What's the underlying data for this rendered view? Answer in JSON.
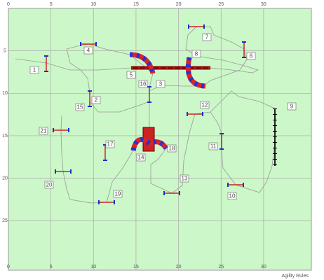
{
  "grid": {
    "xticks": [
      0,
      5,
      10,
      15,
      20,
      25,
      30
    ],
    "yticks": [
      5,
      10,
      15,
      20,
      25
    ]
  },
  "obstacles": [
    {
      "label": "1"
    },
    {
      "label": "2"
    },
    {
      "label": "3"
    },
    {
      "label": "4"
    },
    {
      "label": "5"
    },
    {
      "label": "6"
    },
    {
      "label": "7"
    },
    {
      "label": "8"
    },
    {
      "label": "9"
    },
    {
      "label": "10"
    },
    {
      "label": "11"
    },
    {
      "label": "12"
    },
    {
      "label": "13"
    },
    {
      "label": "14"
    },
    {
      "label": "15"
    },
    {
      "label": "16"
    },
    {
      "label": "17"
    },
    {
      "label": "18"
    },
    {
      "label": "19"
    },
    {
      "label": "20"
    },
    {
      "label": "21"
    }
  ],
  "watermark": "Agility Rules"
}
